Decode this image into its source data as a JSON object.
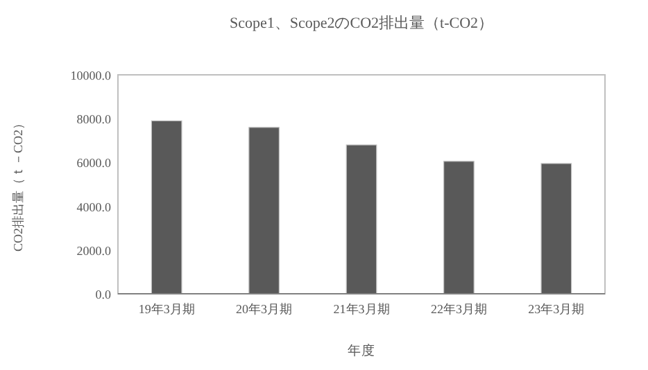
{
  "chart_data": {
    "type": "bar",
    "title": "Scope1、Scope2のCO2排出量（t-CO2）",
    "xlabel": "年度",
    "ylabel": "CO2排出量（ｔ－CO2）",
    "categories": [
      "19年3月期",
      "20年3月期",
      "21年3月期",
      "22年3月期",
      "23年3月期"
    ],
    "values": [
      7900,
      7600,
      6800,
      6050,
      5950
    ],
    "color": "#595959",
    "ylim": [
      0,
      10000
    ],
    "yticks": [
      {
        "value": 0,
        "label": "0.0"
      },
      {
        "value": 2000,
        "label": "2000.0"
      },
      {
        "value": 4000,
        "label": "4000.0"
      },
      {
        "value": 6000,
        "label": "6000.0"
      },
      {
        "value": 8000,
        "label": "8000.0"
      },
      {
        "value": 10000,
        "label": "10000.0"
      }
    ],
    "grid": false
  }
}
